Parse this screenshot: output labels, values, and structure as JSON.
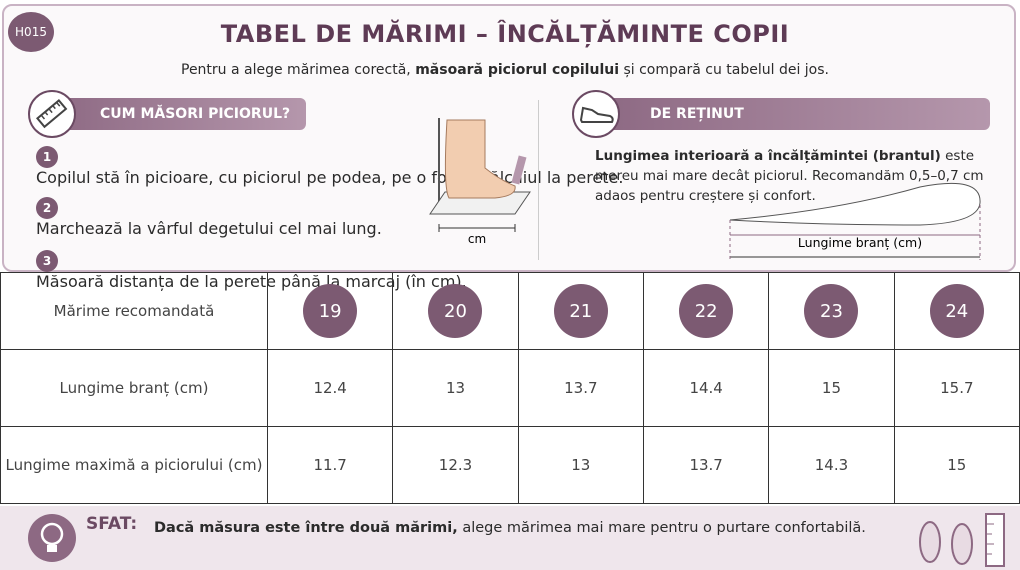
{
  "badge": "H015",
  "header": {
    "title": "TABEL DE MĂRIMI – ÎNCĂLȚĂMINTE COPII",
    "subtitle": {
      "before": "Pentru a alege mărimea corectă, ",
      "bold": "măsoară piciorul copilului",
      "after": " și compară cu tabelul dei jos."
    }
  },
  "left_panel": {
    "title": "CUM MĂSORI PICIORUL?",
    "steps": [
      {
        "number": 1,
        "text": "Copilul stă în picioare, cu piciorul pe podea, pe o foaie, călcâiul la perete."
      },
      {
        "number": 2,
        "text": "Marchează la vârful degetului cel mai lung."
      },
      {
        "number": 3,
        "text": "Măsoară distanța de la perete până la marcaj (în cm)."
      }
    ],
    "diagram_label": "cm"
  },
  "right_panel": {
    "title": "DE REȚINUT",
    "text": {
      "bold": "Lungimea interioară a încălțămintei (brantul)",
      "rest": " este mereu mai mare decât piciorul. Recomandăm 0,5–0,7 cm adaos pentru creștere și confort."
    },
    "diagram_label": "Lungime branț (cm)"
  },
  "table": {
    "rows": [
      {
        "label": "Mărime recomandată",
        "values": [
          19,
          20,
          21,
          22,
          23,
          24
        ]
      },
      {
        "label": "Lungime branț (cm)",
        "values": [
          12.4,
          13,
          13.7,
          14.4,
          15,
          15.7
        ]
      },
      {
        "label": "Lungime maximă a piciorului (cm)",
        "values": [
          11.7,
          12.3,
          13,
          13.7,
          14.3,
          15
        ]
      }
    ]
  },
  "footer": {
    "label": "SFAT:",
    "bold": "Dacă măsura este între două mărimi,",
    "rest": " alege mărimea mai mare pentru o purtare confortabilă."
  }
}
